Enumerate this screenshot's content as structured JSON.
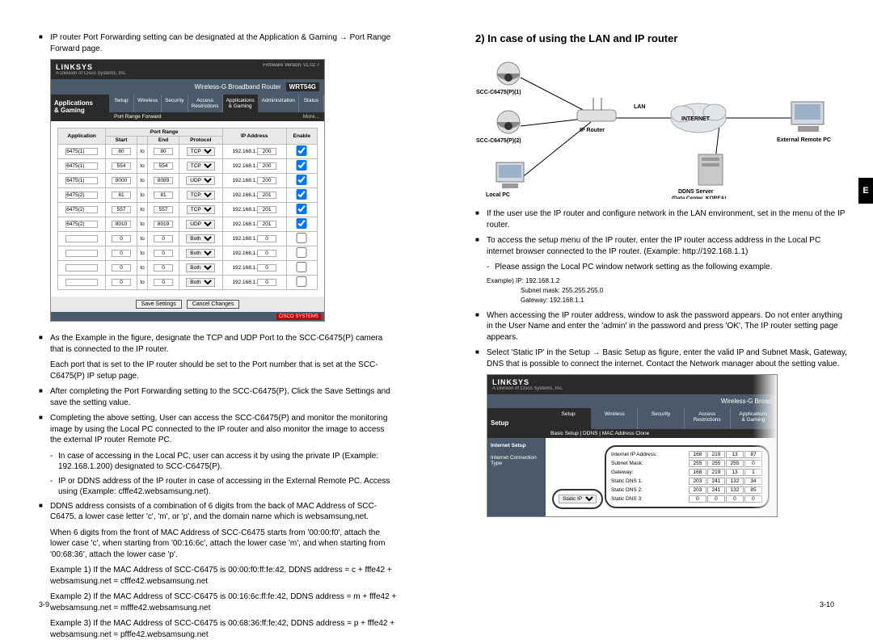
{
  "left": {
    "pageNum": "3-9",
    "bullets": {
      "b1": "IP router Port Forwarding setting can be designated at the Application & Gaming → Port Range Forward page.",
      "b2": "As the Example in the figure, designate the TCP and UDP Port to the SCC-C6475(P) camera that is connected to the IP router.",
      "b2_cont": "Each port that is set to the IP router should be set to the Port number that is set at the SCC-C6475(P) IP setup page.",
      "b3": "After completing the Port Forwarding setting to the SCC-C6475(P), Click the Save Settings and save the setting value.",
      "b4": "Completing the above setting, User can access the SCC-C6475(P) and monitor the monitoring image by using the Local PC connected to the IP router and also monitor the image to access the external IP router Remote PC.",
      "b4_s1": "In case of accessing in the Local PC, user can access it by using the private IP (Example: 192.168.1.200) designated to SCC-C6475(P).",
      "b4_s2": "IP or DDNS address of the IP router in case of accessing in the External Remote PC. Access using (Example: cfffe42.websamsung.net).",
      "b5": "DDNS address consists of a combination of 6 digits from the back of MAC Address of SCC-C6475, a lower case letter 'c', 'm', or 'p', and the domain name which is websamsung,net.",
      "b5_cont": "When 6 digits from the front of MAC Address of SCC-C6475 starts from '00:00:f0', attach the lower case 'c', when starting from '00:16:6c', attach the lower case 'm', and when starting from '00:68:36', attach the lower case 'p'.",
      "b5_ex1": "Example 1) If the MAC Address of SCC-C6475 is 00:00:f0:ff:fe:42, DDNS address = c + fffe42 + websamsung.net = cfffe42.websamsung.net",
      "b5_ex2": "Example 2) If the MAC Address of SCC-C6475 is 00:16:6c:ff:fe:42, DDNS address = m + fffe42 + websamsung.net = mfffe42.websamsung.net",
      "b5_ex3": "Example 3) If the MAC Address of SCC-C6475 is 00:68:36:ff:fe:42, DDNS address = p + fffe42 + websamsung.net = pfffe42.websamsung.net"
    },
    "linksys": {
      "brand": "LINKSYS",
      "fw": "Firmware Version: v1.02.7",
      "productTitle": "Wireless-G Broadband Router",
      "model": "WRT54G",
      "sideLabel": "Applications\n& Gaming",
      "tabs": [
        "Setup",
        "Wireless",
        "Security",
        "Access\nRestrictions",
        "Applications\n& Gaming",
        "Administration",
        "Status"
      ],
      "activeTab": 4,
      "subnav": "Port Range Forward",
      "moreLabel": "More...",
      "rangeHeader": "Port Range",
      "cols": [
        "Application",
        "Start",
        "",
        "End",
        "Protocol",
        "IP Address",
        "Enable"
      ],
      "rows": [
        {
          "app": "6475(1)",
          "start": "80",
          "end": "80",
          "proto": "TCP",
          "ip": "200",
          "en": true
        },
        {
          "app": "6475(1)",
          "start": "554",
          "end": "554",
          "proto": "TCP",
          "ip": "200",
          "en": true
        },
        {
          "app": "6475(1)",
          "start": "8000",
          "end": "8089",
          "proto": "UDP",
          "ip": "200",
          "en": true
        },
        {
          "app": "6475(2)",
          "start": "81",
          "end": "81",
          "proto": "TCP",
          "ip": "201",
          "en": true
        },
        {
          "app": "6475(2)",
          "start": "557",
          "end": "557",
          "proto": "TCP",
          "ip": "201",
          "en": true
        },
        {
          "app": "6475(2)",
          "start": "8010",
          "end": "8019",
          "proto": "UDP",
          "ip": "201",
          "en": true
        },
        {
          "app": "",
          "start": "0",
          "end": "0",
          "proto": "Both",
          "ip": "0",
          "en": false
        },
        {
          "app": "",
          "start": "0",
          "end": "0",
          "proto": "Both",
          "ip": "0",
          "en": false
        },
        {
          "app": "",
          "start": "0",
          "end": "0",
          "proto": "Both",
          "ip": "0",
          "en": false
        },
        {
          "app": "",
          "start": "0",
          "end": "0",
          "proto": "Both",
          "ip": "0",
          "en": false
        }
      ],
      "ipPrefix": "192.168.1.",
      "toLabel": "to",
      "saveBtn": "Save Settings",
      "cancelBtn": "Cancel Changes",
      "cisco": "CISCO SYSTEMS"
    }
  },
  "right": {
    "pageNum": "3-10",
    "sideTab": "E",
    "heading": "2) In case of using the LAN and IP router",
    "diagram": {
      "scc1": "SCC-C6475(P)(1)",
      "scc2": "SCC-C6475(P)(2)",
      "lan": "LAN",
      "ipRouter": "IP Router",
      "internet": "INTERNET",
      "ddns": "DDNS Server\n(Data Center, KOREA)",
      "localPc": "Local PC",
      "remotePc": "External Remote PC",
      "colors": {
        "line": "#000",
        "cloud": "#d9dde2",
        "device": "#a0a0a0",
        "camera": "#888",
        "monitor": "#cfd8e3"
      }
    },
    "bullets": {
      "r1": "If the user use the IP router and configure network in the LAN environment, set in the menu of the IP router.",
      "r2": "To access the setup menu of the IP router, enter the IP router access address in the Local PC internet browser connected to the IP router. (Example: http://192.168.1.1)",
      "r2_s1": "Please assign the Local PC window network setting as the following example.",
      "r_mono1": "Example) IP: 192.168.1.2",
      "r_mono2": "Subnet mask: 255.255.255.0",
      "r_mono3": "Gateway: 192.168.1.1",
      "r3": "When accessing the IP router address, window to ask the password appears. Do not enter anything in the User Name and enter the 'admin' in the password and press 'OK', The IP router setting page appears.",
      "r4": "Select 'Static IP' in the Setup → Basic Setup as figure, enter the valid IP and Subnet Mask, Gateway, DNS that is possible to connect the internet. Contact the Network manager about the setting value."
    },
    "linksys2": {
      "brand": "LINKSYS",
      "productTitle": "Wireless-G Broad",
      "sideTop": "Setup",
      "tabs": [
        "Setup",
        "Wireless",
        "Security",
        "Access\nRestrictions",
        "Applications\n& Gaming"
      ],
      "activeTab": 0,
      "subnav": "Basic Setup    |    DDNS    |    MAC Address Clone",
      "sideLabel1": "Internet Setup",
      "sideLabel2": "Internet Connection Type",
      "connType": "Static IP",
      "fields": [
        {
          "label": "Internet IP Address:",
          "ip": [
            "168",
            "219",
            "13",
            "87"
          ]
        },
        {
          "label": "Subnet Mask:",
          "ip": [
            "255",
            "255",
            "255",
            "0"
          ]
        },
        {
          "label": "Gateway:",
          "ip": [
            "168",
            "219",
            "13",
            "1"
          ]
        },
        {
          "label": "Static DNS 1:",
          "ip": [
            "203",
            "241",
            "132",
            "34"
          ]
        },
        {
          "label": "Static DNS 2:",
          "ip": [
            "203",
            "241",
            "132",
            "85"
          ]
        },
        {
          "label": "Static DNS 3:",
          "ip": [
            "0",
            "0",
            "0",
            "0"
          ]
        }
      ]
    }
  }
}
